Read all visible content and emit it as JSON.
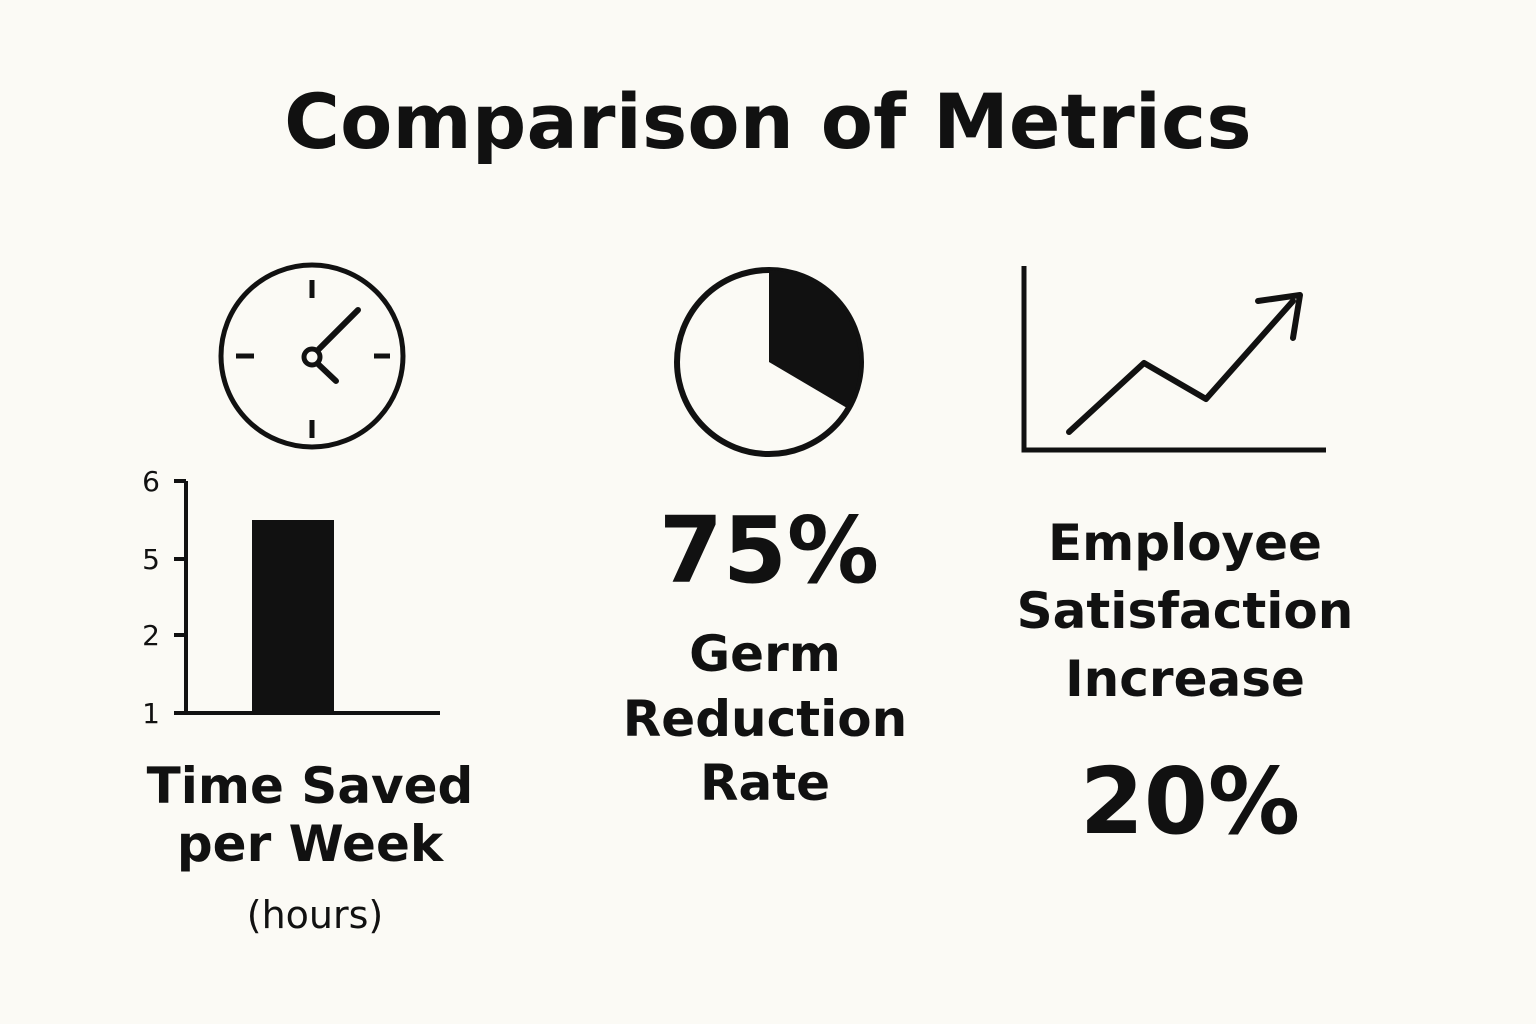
{
  "title": "Comparison of Metrics",
  "colors": {
    "background": "#fbfaf5",
    "ink": "#111111"
  },
  "metrics": {
    "time_saved": {
      "icon": "clock-icon",
      "label_lines": [
        "Time Saved",
        "per Week"
      ],
      "unit": "(hours)"
    },
    "germ_reduction": {
      "icon": "pie-chart-icon",
      "value": "75%",
      "label_lines": [
        "Germ",
        "Reduction",
        "Rate"
      ]
    },
    "employee_satisfaction": {
      "icon": "trend-up-icon",
      "label_lines": [
        "Employee",
        "Satisfaction",
        "Increase"
      ],
      "value": "20%"
    }
  },
  "chart_data": {
    "type": "bar",
    "categories": [
      ""
    ],
    "values": [
      5.5
    ],
    "title": "Time Saved per Week",
    "ylabel": "(hours)",
    "yticks": [
      "1",
      "2",
      "5",
      "6"
    ],
    "grid": false
  }
}
